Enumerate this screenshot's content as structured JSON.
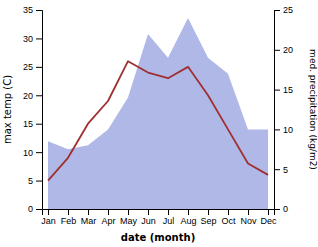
{
  "chart_data": {
    "type": "line",
    "xlabel": "date (month)",
    "ylabel": "max temp (C)",
    "y2label": "med. precipitation (kg/m2)",
    "categories": [
      "Jan",
      "Feb",
      "Mar",
      "Apr",
      "May",
      "Jun",
      "Jul",
      "Aug",
      "Sep",
      "Oct",
      "Nov",
      "Dec"
    ],
    "series": [
      {
        "type": "area",
        "axis": "y2",
        "color": "#b0b8e8",
        "values": [
          8.5,
          7.5,
          8,
          10,
          14,
          22,
          19,
          24,
          19,
          17,
          10,
          10
        ]
      },
      {
        "type": "line",
        "color": "#a03030",
        "values": [
          5,
          9,
          15,
          19,
          26,
          24,
          23,
          25,
          20,
          14,
          8,
          6
        ]
      }
    ],
    "ylim": [
      0,
      35
    ],
    "yticks": [
      0,
      5,
      10,
      15,
      20,
      25,
      30,
      35
    ],
    "y2lim": [
      0,
      25
    ],
    "y2ticks": [
      0,
      5,
      10,
      15,
      20,
      25
    ],
    "grid": false
  }
}
